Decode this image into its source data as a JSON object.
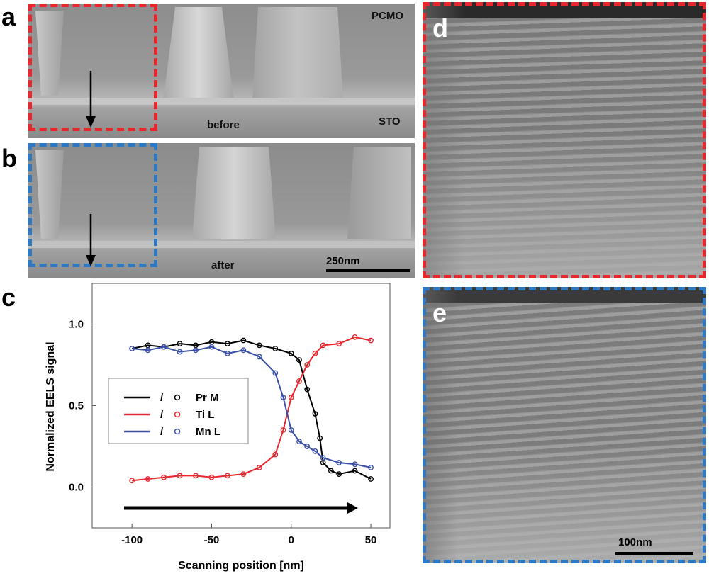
{
  "panels": {
    "a": {
      "letter": "a",
      "top_label": "PCMO",
      "bottom_label": "STO",
      "state_label": "before"
    },
    "b": {
      "letter": "b",
      "state_label": "after",
      "scale": "250nm"
    },
    "c": {
      "letter": "c"
    },
    "d": {
      "letter": "d"
    },
    "e": {
      "letter": "e",
      "scale": "100nm"
    }
  },
  "colors": {
    "red_dash": "#e8262d",
    "blue_dash": "#2f78c4",
    "pr": "#000000",
    "ti": "#e8262d",
    "mn": "#3a4fa8"
  },
  "chart_data": {
    "type": "line",
    "xlabel": "Scanning position [nm]",
    "ylabel": "Normalized EELS signal",
    "xlim": [
      -125,
      62
    ],
    "ylim": [
      -0.25,
      1.25
    ],
    "xticks": [
      -100,
      -50,
      0,
      50
    ],
    "yticks": [
      0.0,
      0.5,
      1.0
    ],
    "xtick_labels": [
      "-100",
      "-50",
      "0",
      "50"
    ],
    "ytick_labels": [
      "0.0",
      "0.5",
      "1.0"
    ],
    "legend": {
      "placement": "center-left",
      "separator": "/",
      "entries": [
        "Pr M",
        "Ti L",
        "Mn L"
      ]
    },
    "series": [
      {
        "name": "Pr M",
        "x": [
          -100,
          -90,
          -80,
          -70,
          -60,
          -50,
          -40,
          -30,
          -20,
          -10,
          0,
          5,
          10,
          15,
          18,
          20,
          25,
          30,
          40,
          50
        ],
        "y": [
          0.85,
          0.87,
          0.86,
          0.88,
          0.87,
          0.89,
          0.88,
          0.9,
          0.87,
          0.85,
          0.82,
          0.78,
          0.6,
          0.45,
          0.3,
          0.15,
          0.1,
          0.08,
          0.1,
          0.05
        ]
      },
      {
        "name": "Ti L",
        "x": [
          -100,
          -90,
          -80,
          -70,
          -60,
          -50,
          -40,
          -30,
          -20,
          -10,
          -5,
          0,
          5,
          10,
          15,
          20,
          30,
          40,
          50
        ],
        "y": [
          0.04,
          0.05,
          0.06,
          0.07,
          0.07,
          0.06,
          0.07,
          0.08,
          0.12,
          0.2,
          0.35,
          0.55,
          0.65,
          0.75,
          0.82,
          0.87,
          0.88,
          0.92,
          0.9
        ]
      },
      {
        "name": "Mn L",
        "x": [
          -100,
          -90,
          -80,
          -70,
          -60,
          -50,
          -40,
          -30,
          -20,
          -10,
          -5,
          0,
          5,
          10,
          15,
          20,
          30,
          40,
          50
        ],
        "y": [
          0.85,
          0.84,
          0.86,
          0.83,
          0.84,
          0.86,
          0.82,
          0.84,
          0.8,
          0.7,
          0.55,
          0.35,
          0.28,
          0.25,
          0.22,
          0.18,
          0.15,
          0.14,
          0.12
        ]
      }
    ]
  }
}
